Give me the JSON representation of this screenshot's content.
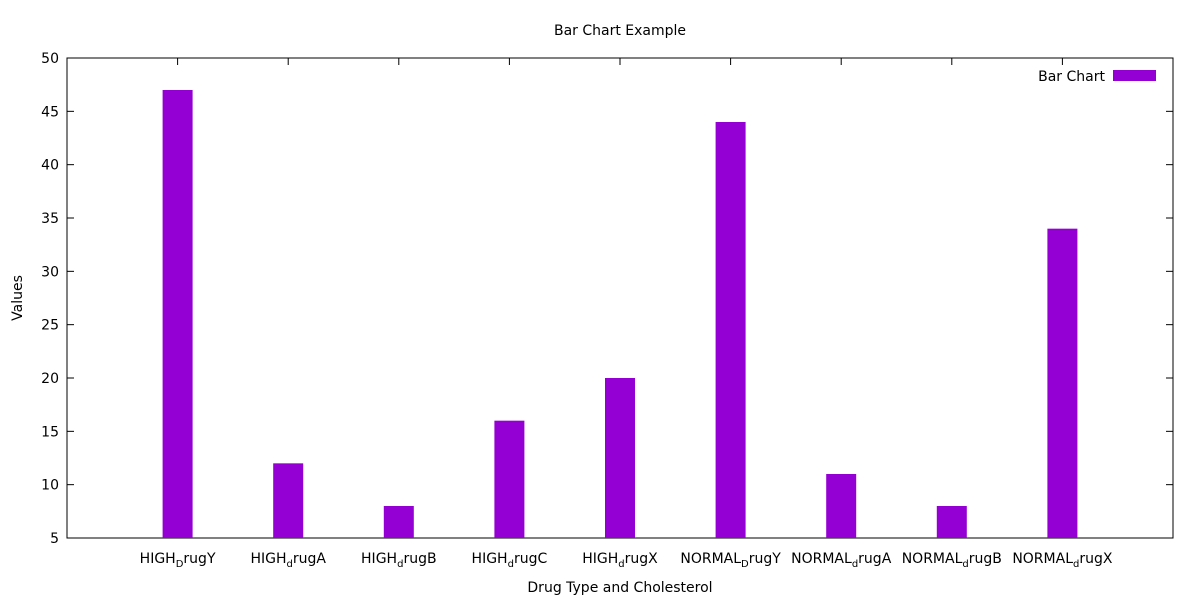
{
  "chart_data": {
    "type": "bar",
    "title": "Bar Chart Example",
    "xlabel": "Drug Type and Cholesterol",
    "ylabel": "Values",
    "ylim": [
      5,
      50
    ],
    "yticks": [
      5,
      10,
      15,
      20,
      25,
      30,
      35,
      40,
      45,
      50
    ],
    "grid": false,
    "legend": "top-right",
    "categories": [
      {
        "base": "HIGH",
        "sub": "D",
        "rest": "rugY"
      },
      {
        "base": "HIGH",
        "sub": "d",
        "rest": "rugA"
      },
      {
        "base": "HIGH",
        "sub": "d",
        "rest": "rugB"
      },
      {
        "base": "HIGH",
        "sub": "d",
        "rest": "rugC"
      },
      {
        "base": "HIGH",
        "sub": "d",
        "rest": "rugX"
      },
      {
        "base": "NORMAL",
        "sub": "D",
        "rest": "rugY"
      },
      {
        "base": "NORMAL",
        "sub": "d",
        "rest": "rugA"
      },
      {
        "base": "NORMAL",
        "sub": "d",
        "rest": "rugB"
      },
      {
        "base": "NORMAL",
        "sub": "d",
        "rest": "rugX"
      }
    ],
    "series": [
      {
        "name": "Bar Chart",
        "color": "#9400d3",
        "values": [
          47,
          12,
          8,
          16,
          20,
          44,
          11,
          8,
          34
        ]
      }
    ]
  }
}
